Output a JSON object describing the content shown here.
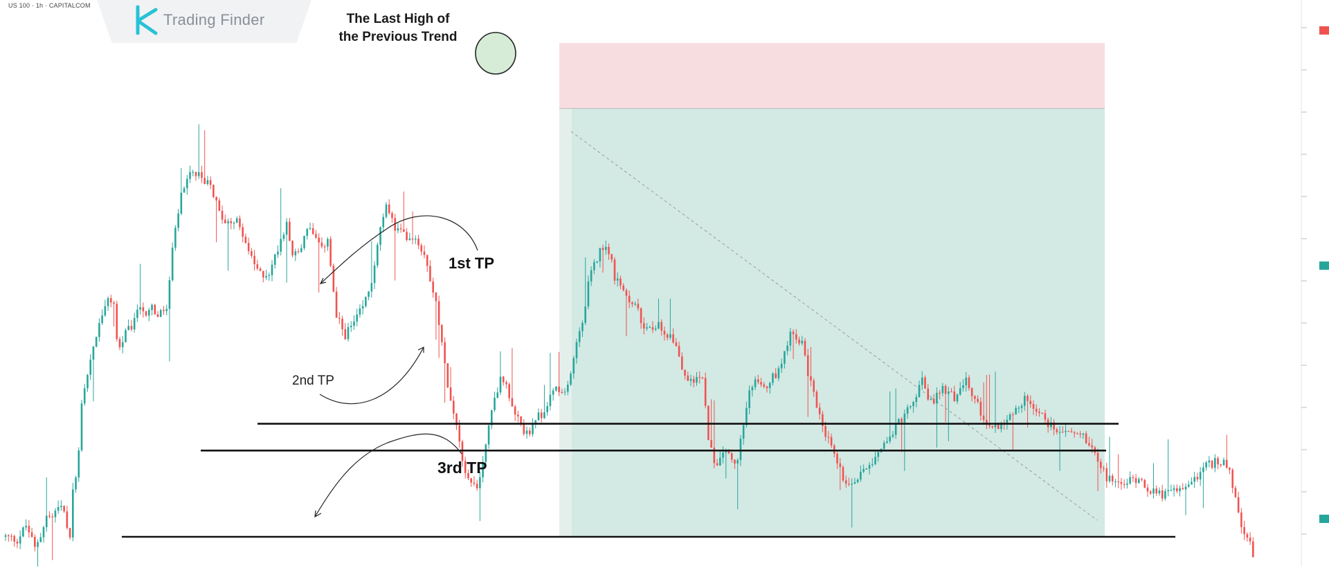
{
  "header": {
    "symbol": "US 100 · 1h · CAPITALCOM",
    "brand": "Trading Finder"
  },
  "annotations": {
    "title_line1": "The Last High of",
    "title_line2": "the Previous Trend",
    "tp1": "1st TP",
    "tp2": "2nd TP",
    "tp3": "3rd TP"
  },
  "colors": {
    "bull": "#26a69a",
    "bear": "#ef5350",
    "stop_zone": "#f8dde0",
    "target_zone": "#d3e9e4",
    "level_line": "#111111",
    "circle_fill": "#c8e6c9"
  },
  "chart_data": {
    "type": "candlestick",
    "title": "",
    "xlabel": "",
    "ylabel": "",
    "ylim": [
      0,
      100
    ],
    "grid": false,
    "units": "relative (price axis labels not legible)",
    "keypoints": [
      [
        0,
        10
      ],
      [
        10,
        9
      ],
      [
        18,
        14
      ],
      [
        25,
        6
      ],
      [
        35,
        16
      ],
      [
        48,
        20
      ],
      [
        55,
        10
      ],
      [
        58,
        28
      ],
      [
        62,
        35
      ],
      [
        65,
        56
      ],
      [
        75,
        74
      ],
      [
        85,
        88
      ],
      [
        92,
        90
      ],
      [
        96,
        72
      ],
      [
        102,
        78
      ],
      [
        110,
        82
      ],
      [
        114,
        90
      ],
      [
        118,
        84
      ],
      [
        124,
        88
      ],
      [
        130,
        84
      ],
      [
        138,
        87
      ],
      [
        142,
        105
      ],
      [
        150,
        125
      ],
      [
        158,
        132
      ],
      [
        165,
        131
      ],
      [
        175,
        128
      ],
      [
        185,
        116
      ],
      [
        195,
        117
      ],
      [
        202,
        113
      ],
      [
        210,
        103
      ],
      [
        218,
        98
      ],
      [
        226,
        99
      ],
      [
        233,
        108
      ],
      [
        240,
        116
      ],
      [
        246,
        104
      ],
      [
        252,
        107
      ],
      [
        258,
        115
      ],
      [
        264,
        110
      ],
      [
        270,
        106
      ],
      [
        275,
        111
      ],
      [
        282,
        84
      ],
      [
        290,
        78
      ],
      [
        298,
        82
      ],
      [
        305,
        87
      ],
      [
        312,
        95
      ],
      [
        318,
        110
      ],
      [
        326,
        122
      ],
      [
        332,
        114
      ],
      [
        338,
        112
      ],
      [
        344,
        111
      ],
      [
        350,
        111
      ],
      [
        358,
        104
      ],
      [
        366,
        92
      ],
      [
        373,
        73
      ],
      [
        380,
        55
      ],
      [
        386,
        47
      ],
      [
        392,
        32
      ],
      [
        398,
        28
      ],
      [
        404,
        27
      ],
      [
        410,
        42
      ],
      [
        418,
        58
      ],
      [
        424,
        64
      ],
      [
        430,
        58
      ],
      [
        436,
        50
      ],
      [
        442,
        46
      ],
      [
        448,
        45
      ],
      [
        454,
        50
      ],
      [
        460,
        52
      ],
      [
        466,
        59
      ],
      [
        470,
        60
      ],
      [
        476,
        57
      ],
      [
        482,
        62
      ],
      [
        486,
        74
      ],
      [
        492,
        82
      ],
      [
        498,
        96
      ],
      [
        504,
        103
      ],
      [
        510,
        108
      ],
      [
        516,
        106
      ],
      [
        520,
        97
      ],
      [
        526,
        93
      ],
      [
        532,
        89
      ],
      [
        538,
        88
      ],
      [
        544,
        80
      ],
      [
        550,
        79
      ],
      [
        556,
        82
      ],
      [
        564,
        79
      ],
      [
        572,
        75
      ],
      [
        580,
        63
      ],
      [
        588,
        62
      ],
      [
        594,
        66
      ],
      [
        600,
        44
      ],
      [
        606,
        34
      ],
      [
        612,
        40
      ],
      [
        618,
        38
      ],
      [
        624,
        32
      ],
      [
        632,
        54
      ],
      [
        640,
        64
      ],
      [
        650,
        61
      ],
      [
        660,
        66
      ],
      [
        670,
        79
      ],
      [
        676,
        75
      ],
      [
        680,
        75
      ],
      [
        685,
        65
      ],
      [
        690,
        58
      ],
      [
        695,
        52
      ],
      [
        700,
        45
      ],
      [
        705,
        40
      ],
      [
        710,
        35
      ],
      [
        715,
        30
      ],
      [
        720,
        28
      ],
      [
        726,
        29
      ],
      [
        732,
        33
      ],
      [
        740,
        36
      ],
      [
        752,
        43
      ],
      [
        764,
        49
      ],
      [
        772,
        53
      ],
      [
        778,
        58
      ],
      [
        782,
        63
      ],
      [
        790,
        55
      ],
      [
        800,
        60
      ],
      [
        810,
        57
      ],
      [
        820,
        62
      ],
      [
        830,
        54
      ],
      [
        840,
        47
      ],
      [
        850,
        48
      ],
      [
        860,
        52
      ],
      [
        870,
        56
      ],
      [
        880,
        53
      ],
      [
        890,
        48
      ],
      [
        900,
        46
      ],
      [
        912,
        45
      ],
      [
        920,
        44
      ],
      [
        930,
        39
      ],
      [
        940,
        30
      ],
      [
        952,
        27
      ],
      [
        960,
        29
      ],
      [
        968,
        30
      ],
      [
        976,
        26
      ],
      [
        988,
        24
      ],
      [
        996,
        25
      ],
      [
        1004,
        26
      ],
      [
        1016,
        30
      ],
      [
        1026,
        34
      ],
      [
        1040,
        36
      ],
      [
        1046,
        30
      ],
      [
        1050,
        22
      ],
      [
        1056,
        12
      ],
      [
        1062,
        8
      ],
      [
        1066,
        0
      ]
    ],
    "levels": [
      {
        "label": "1st TP",
        "value": 48
      },
      {
        "label": "2nd TP",
        "value": 39
      },
      {
        "label": "3rd TP",
        "value": 10
      }
    ],
    "position": {
      "type": "short",
      "entry": 154,
      "stop": 176,
      "target": 10
    }
  }
}
